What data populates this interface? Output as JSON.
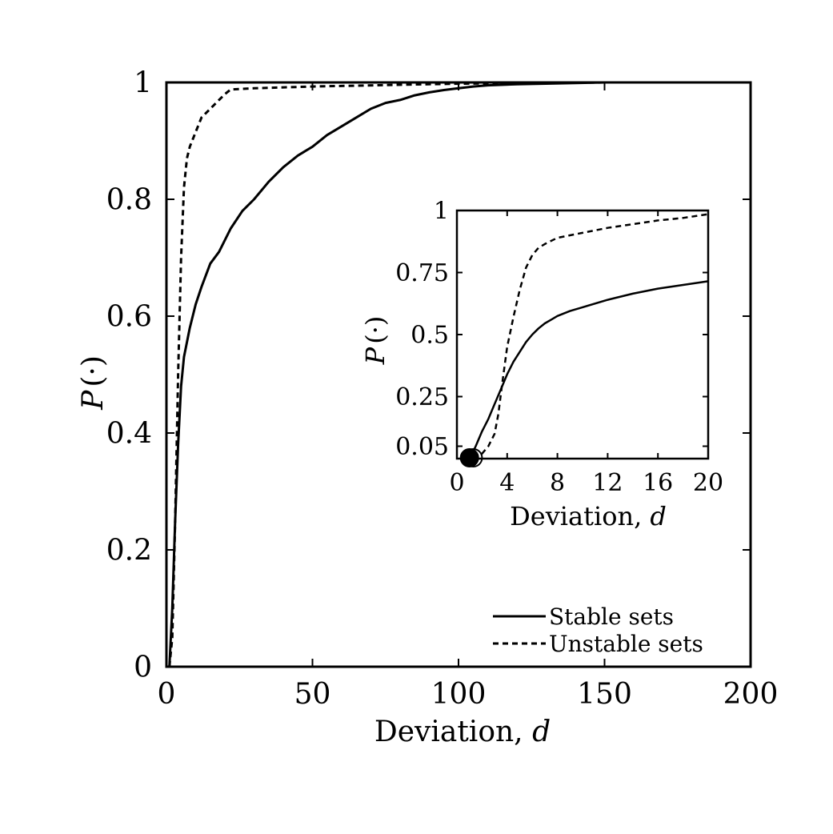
{
  "chart_data": [
    {
      "type": "line",
      "panel": "main",
      "xlabel": "Deviation, ",
      "xlabel_var": "d",
      "ylabel": "P",
      "ylabel_suffix": "(·)",
      "xlim": [
        0,
        200
      ],
      "ylim": [
        0,
        1
      ],
      "x_ticks": [
        0,
        50,
        100,
        150,
        200
      ],
      "y_ticks": [
        0,
        0.2,
        0.4,
        0.6,
        0.8,
        1
      ],
      "x_tick_labels": [
        "0",
        "50",
        "100",
        "150",
        "200"
      ],
      "y_tick_labels": [
        "0",
        "0.2",
        "0.4",
        "0.6",
        "0.8",
        "1"
      ],
      "grid": false,
      "legend_position": "bottom-right",
      "series": [
        {
          "name": "Stable sets",
          "style": "solid",
          "x": [
            1,
            2,
            3,
            4,
            5,
            6,
            8,
            10,
            12,
            15,
            18,
            22,
            26,
            30,
            35,
            40,
            45,
            50,
            55,
            60,
            65,
            70,
            75,
            80,
            85,
            90,
            95,
            100,
            105,
            110,
            120,
            130,
            150
          ],
          "y": [
            0,
            0.1,
            0.25,
            0.38,
            0.48,
            0.53,
            0.58,
            0.62,
            0.65,
            0.69,
            0.71,
            0.75,
            0.78,
            0.8,
            0.83,
            0.855,
            0.875,
            0.89,
            0.91,
            0.925,
            0.94,
            0.955,
            0.965,
            0.97,
            0.978,
            0.983,
            0.987,
            0.99,
            0.993,
            0.995,
            0.997,
            0.998,
            1
          ]
        },
        {
          "name": "Unstable sets",
          "style": "dashed",
          "x": [
            1,
            2,
            3,
            4,
            5,
            6,
            7,
            8,
            10,
            12,
            15,
            18,
            20,
            22,
            30,
            50,
            100,
            150
          ],
          "y": [
            0,
            0.05,
            0.25,
            0.5,
            0.7,
            0.82,
            0.87,
            0.89,
            0.915,
            0.94,
            0.955,
            0.97,
            0.98,
            0.988,
            0.99,
            0.993,
            0.998,
            1
          ]
        }
      ]
    },
    {
      "type": "line",
      "panel": "inset",
      "xlabel": "Deviation, ",
      "xlabel_var": "d",
      "ylabel": "P",
      "ylabel_suffix": "(·)",
      "xlim": [
        0,
        20
      ],
      "ylim": [
        0,
        1
      ],
      "x_ticks": [
        0,
        4,
        8,
        12,
        16,
        20
      ],
      "y_ticks": [
        0.05,
        0.25,
        0.5,
        0.75,
        1
      ],
      "x_tick_labels": [
        "0",
        "4",
        "8",
        "12",
        "16",
        "20"
      ],
      "y_tick_labels": [
        "0.05",
        "0.25",
        "0.5",
        "0.75",
        "1"
      ],
      "grid": false,
      "markers": [
        {
          "series": "Stable sets",
          "x": 1,
          "y": 0,
          "fill": "#000000"
        },
        {
          "series": "Unstable sets",
          "x": 1.3,
          "y": 0,
          "fill": "none"
        }
      ],
      "series": [
        {
          "name": "Stable sets",
          "style": "solid",
          "x": [
            1,
            1.5,
            2,
            2.5,
            3,
            3.5,
            4,
            4.5,
            5,
            5.5,
            6,
            6.5,
            7,
            7.5,
            8,
            9,
            10,
            12,
            14,
            16,
            18,
            20
          ],
          "y": [
            0,
            0.05,
            0.11,
            0.16,
            0.22,
            0.28,
            0.34,
            0.39,
            0.43,
            0.47,
            0.5,
            0.525,
            0.545,
            0.56,
            0.575,
            0.595,
            0.61,
            0.64,
            0.665,
            0.685,
            0.7,
            0.715
          ]
        },
        {
          "name": "Unstable sets",
          "style": "dashed",
          "x": [
            1.3,
            2,
            2.5,
            3,
            3.3,
            3.6,
            4,
            4.5,
            5,
            5.5,
            6,
            6.5,
            7,
            8,
            9,
            10,
            12,
            14,
            16,
            18,
            20
          ],
          "y": [
            0,
            0.02,
            0.05,
            0.1,
            0.18,
            0.3,
            0.45,
            0.57,
            0.68,
            0.77,
            0.82,
            0.85,
            0.865,
            0.89,
            0.9,
            0.91,
            0.93,
            0.945,
            0.96,
            0.97,
            0.985
          ]
        }
      ]
    }
  ]
}
